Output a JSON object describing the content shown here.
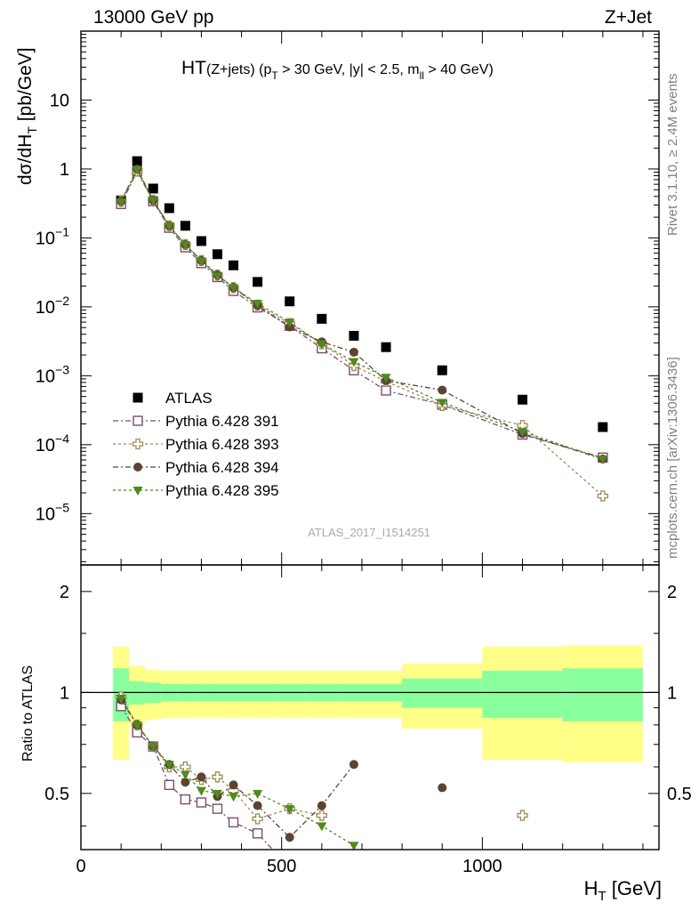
{
  "header": {
    "left": "13000 GeV pp",
    "right": "Z+Jet"
  },
  "plot_title": {
    "main": "HT",
    "sub": "(Z+jets) (p",
    "sub_t": "T",
    "sub_mid": " > 30 GeV, |y| < 2.5, m",
    "sub_ll": "ll",
    "sub_end": " > 40 GeV)"
  },
  "analysis_id": "ATLAS_2017_I1514251",
  "side_labels": {
    "rivet": "Rivet 3.1.10, ≥ 2.4M events",
    "mcplots": "mcplots.cern.ch [arXiv:1306.3436]"
  },
  "upper_yaxis_label": {
    "pre": "dσ/dH",
    "sub": "T",
    "post": " [pb/GeV]"
  },
  "lower_yaxis_label": "Ratio to ATLAS",
  "xaxis_label": {
    "pre": "H",
    "sub": "T",
    "post": " [GeV]"
  },
  "upper_yticks": [
    {
      "v": 10,
      "base": "10",
      "exp": ""
    },
    {
      "v": 1,
      "base": "1",
      "exp": ""
    },
    {
      "v": 0.1,
      "base": "10",
      "exp": "−1"
    },
    {
      "v": 0.01,
      "base": "10",
      "exp": "−2"
    },
    {
      "v": 0.001,
      "base": "10",
      "exp": "−3"
    },
    {
      "v": 0.0001,
      "base": "10",
      "exp": "−4"
    },
    {
      "v": 1e-05,
      "base": "10",
      "exp": "−5"
    }
  ],
  "lower_yticks": [
    "0.5",
    "1",
    "2"
  ],
  "xticks": [
    "0",
    "500",
    "1000"
  ],
  "legend": [
    {
      "label": "ATLAS"
    },
    {
      "label": "Pythia 6.428 391"
    },
    {
      "label": "Pythia 6.428 393"
    },
    {
      "label": "Pythia 6.428 394"
    },
    {
      "label": "Pythia 6.428 395"
    }
  ],
  "colors": {
    "atlas": "#000000",
    "p391": "#7a4d6e",
    "p393": "#9c8a57",
    "p394": "#5e4330",
    "p395": "#4f8a1e",
    "band_inner": "#88ff9c",
    "band_outer": "#ffff88"
  },
  "chart_data": {
    "type": "scatter",
    "xlabel": "H_T [GeV]",
    "ylabel": "dσ/dH_T [pb/GeV]",
    "xlim": [
      0,
      1440
    ],
    "ylim": [
      1.8e-06,
      100
    ],
    "ratio_ylim": [
      0.34,
      2.4
    ],
    "bin_edges": [
      80,
      120,
      160,
      200,
      240,
      280,
      320,
      360,
      400,
      480,
      560,
      640,
      720,
      800,
      1000,
      1200,
      1400
    ],
    "x": [
      100,
      140,
      180,
      220,
      260,
      300,
      340,
      380,
      440,
      520,
      600,
      680,
      760,
      900,
      1100,
      1300
    ],
    "series": [
      {
        "name": "ATLAS",
        "values": [
          0.35,
          1.3,
          0.52,
          0.27,
          0.15,
          0.09,
          0.058,
          0.04,
          0.023,
          0.012,
          0.0067,
          0.0038,
          0.0026,
          0.0012,
          0.00045,
          0.00018
        ]
      },
      {
        "name": "Pythia 6.428 391",
        "values": [
          0.31,
          0.92,
          0.34,
          0.14,
          0.073,
          0.043,
          0.027,
          0.017,
          0.0098,
          0.0053,
          0.0025,
          0.0012,
          0.00061,
          0.00038,
          0.00014,
          6.5e-05
        ],
        "ratio": [
          0.91,
          0.76,
          0.69,
          0.53,
          0.48,
          0.47,
          0.45,
          0.41,
          0.38,
          0.3,
          0.3,
          null,
          null,
          null,
          null,
          null
        ]
      },
      {
        "name": "Pythia 6.428 393",
        "values": [
          0.34,
          0.94,
          0.35,
          0.15,
          0.08,
          0.047,
          0.029,
          0.019,
          0.0106,
          0.0057,
          0.0029,
          0.0014,
          0.00083,
          0.00037,
          0.00019,
          1.8e-05
        ],
        "ratio": [
          0.97,
          0.8,
          0.69,
          0.6,
          0.6,
          0.55,
          0.56,
          0.51,
          0.42,
          0.45,
          0.43,
          null,
          null,
          null,
          0.43,
          null
        ]
      },
      {
        "name": "Pythia 6.428 394",
        "values": [
          0.34,
          1.0,
          0.35,
          0.15,
          0.08,
          0.047,
          0.029,
          0.019,
          0.0105,
          0.0051,
          0.0031,
          0.0022,
          0.00085,
          0.00062,
          0.000145,
          6.2e-05
        ],
        "ratio": [
          0.95,
          0.8,
          0.69,
          0.61,
          0.54,
          0.56,
          0.49,
          0.53,
          0.46,
          0.37,
          0.46,
          0.61,
          null,
          0.52,
          null,
          null
        ]
      },
      {
        "name": "Pythia 6.428 395",
        "values": [
          0.33,
          0.98,
          0.35,
          0.15,
          0.08,
          0.046,
          0.028,
          0.019,
          0.0112,
          0.006,
          0.0029,
          0.0016,
          0.00095,
          0.00041,
          0.000155,
          6.2e-05
        ],
        "ratio": [
          0.96,
          0.8,
          0.69,
          0.61,
          0.57,
          0.51,
          0.5,
          0.49,
          0.5,
          0.45,
          0.4,
          0.35,
          null,
          null,
          null,
          null
        ]
      }
    ],
    "ratio_band_inner": [
      1.18,
      1.08,
      1.07,
      1.06,
      1.06,
      1.06,
      1.06,
      1.06,
      1.06,
      1.06,
      1.06,
      1.06,
      1.06,
      1.1,
      1.16,
      1.18
    ],
    "ratio_band_outer": [
      1.37,
      1.2,
      1.17,
      1.16,
      1.16,
      1.16,
      1.16,
      1.16,
      1.16,
      1.16,
      1.16,
      1.16,
      1.16,
      1.22,
      1.37,
      1.38
    ]
  }
}
